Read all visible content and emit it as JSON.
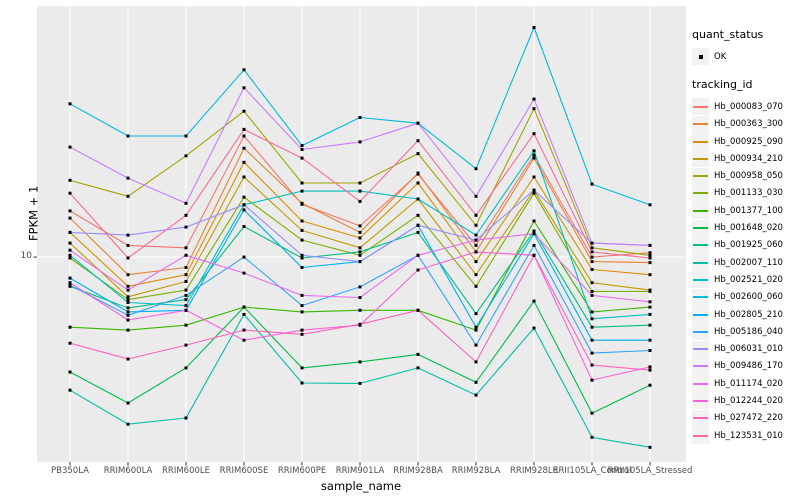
{
  "chart_data": {
    "type": "line",
    "title": "",
    "xlabel": "sample_name",
    "ylabel": "FPKM + 1",
    "y_scale": "log10",
    "ylim": [
      1,
      168
    ],
    "y_breaks": [
      10
    ],
    "y_break_label": "10",
    "grid": true,
    "panel_bg": "#EBEBEB",
    "grid_color": "#FFFFFF",
    "point_color": "#000000",
    "legend_position": "right",
    "categories": [
      "PB350LA",
      "RRIM600LA",
      "RRIM600LE",
      "RRIM600SE",
      "RRIM600PE",
      "RRIM901LA",
      "RRIM928BA",
      "RRIM928LA",
      "RRIM928LE",
      "RRII105LA_Control",
      "RRII105LA_Stressed"
    ],
    "series": [
      {
        "name": "Hb_000083_070",
        "color": "#F8766D",
        "values": [
          16.8,
          11.4,
          11.1,
          39,
          18.1,
          14.2,
          25.4,
          11.4,
          31.5,
          10,
          10.5
        ]
      },
      {
        "name": "Hb_000363_300",
        "color": "#EA8331",
        "values": [
          15.5,
          8.2,
          8.9,
          34,
          18.3,
          13.2,
          25.7,
          10.6,
          30.4,
          9.5,
          9.4
        ]
      },
      {
        "name": "Hb_000925_090",
        "color": "#D89000",
        "values": [
          13.2,
          7.2,
          8.2,
          29,
          15,
          12.4,
          23,
          9.5,
          24.6,
          8.7,
          8.2
        ]
      },
      {
        "name": "Hb_000934_210",
        "color": "#C09B00",
        "values": [
          11.7,
          6.4,
          7.6,
          24.6,
          13.5,
          11.1,
          19.2,
          8.2,
          21.2,
          7.5,
          6.9
        ]
      },
      {
        "name": "Hb_000958_050",
        "color": "#A3A500",
        "values": [
          23.7,
          19.8,
          31.2,
          51.5,
          23,
          23,
          32,
          14.3,
          53,
          11.1,
          10.2
        ]
      },
      {
        "name": "Hb_001133_030",
        "color": "#7CAE00",
        "values": [
          9.9,
          6.2,
          6.9,
          19.6,
          12.1,
          10.2,
          16,
          7.2,
          20.5,
          6.8,
          6.8
        ]
      },
      {
        "name": "Hb_001377_100",
        "color": "#39B600",
        "values": [
          4.55,
          4.4,
          4.65,
          5.7,
          5.4,
          5.5,
          5.5,
          4.4,
          15,
          5.4,
          5.7
        ]
      },
      {
        "name": "Hb_001648_020",
        "color": "#00BB4E",
        "values": [
          2.75,
          1.94,
          2.88,
          5.7,
          2.88,
          3.08,
          3.35,
          2.45,
          6.1,
          1.73,
          2.37
        ]
      },
      {
        "name": "Hb_001925_060",
        "color": "#00BF7D",
        "values": [
          7.2,
          5.65,
          6.2,
          14.1,
          9.9,
          10.6,
          13.2,
          5.3,
          13.4,
          4.55,
          4.65
        ]
      },
      {
        "name": "Hb_002007_110",
        "color": "#00C1A3",
        "values": [
          2.24,
          1.53,
          1.64,
          5.25,
          2.43,
          2.42,
          2.88,
          2.12,
          4.5,
          1.32,
          1.18
        ]
      },
      {
        "name": "Hb_002521_020",
        "color": "#00BFC4",
        "values": [
          10.2,
          6.0,
          5.8,
          18,
          21,
          21,
          19.2,
          12.8,
          33,
          5.0,
          5.25
        ]
      },
      {
        "name": "Hb_002600_060",
        "color": "#00BADE",
        "values": [
          56,
          39,
          39,
          82,
          35,
          48,
          45,
          27,
          132,
          22.7,
          18
        ]
      },
      {
        "name": "Hb_002805_210",
        "color": "#00B0F6",
        "values": [
          7.9,
          5.4,
          5.5,
          17,
          8.9,
          9.5,
          14.3,
          4.55,
          13,
          3.93,
          3.93
        ]
      },
      {
        "name": "Hb_005186_040",
        "color": "#35A2FF",
        "values": [
          7.3,
          5.2,
          6.5,
          10,
          5.8,
          7.15,
          10.2,
          3.72,
          11.4,
          3.4,
          3.5
        ]
      },
      {
        "name": "Hb_006031_010",
        "color": "#9590FF",
        "values": [
          13.2,
          12.8,
          14,
          18,
          10.2,
          9.5,
          14.3,
          12.1,
          21.2,
          11.7,
          11.4
        ]
      },
      {
        "name": "Hb_009486_170",
        "color": "#C77CFF",
        "values": [
          34.4,
          24.3,
          18.3,
          67,
          33.5,
          36.5,
          45,
          19.8,
          59,
          11.7,
          11.4
        ]
      },
      {
        "name": "Hb_011174_020",
        "color": "#E76BF3",
        "values": [
          10.8,
          6.9,
          10.2,
          8.35,
          6.5,
          6.35,
          10.2,
          12.1,
          13,
          6.5,
          6.05
        ]
      },
      {
        "name": "Hb_012244_020",
        "color": "#FA62DB",
        "values": [
          7.5,
          4.93,
          5.5,
          3.93,
          4.4,
          4.65,
          8.65,
          10.6,
          10.2,
          2.51,
          2.91
        ]
      },
      {
        "name": "Hb_027472_220",
        "color": "#FF62BC",
        "values": [
          3.8,
          3.18,
          3.72,
          4.4,
          4.2,
          4.7,
          5.5,
          3.08,
          10.2,
          2.97,
          2.81
        ]
      },
      {
        "name": "Hb_123531_010",
        "color": "#FF6A98",
        "values": [
          20.5,
          9.9,
          16,
          42,
          30.4,
          18.7,
          37,
          16,
          40,
          10.6,
          9.9
        ]
      }
    ]
  },
  "legend": {
    "quant_title": "quant_status",
    "quant_items": [
      {
        "label": "OK"
      }
    ],
    "tracking_title": "tracking_id"
  }
}
